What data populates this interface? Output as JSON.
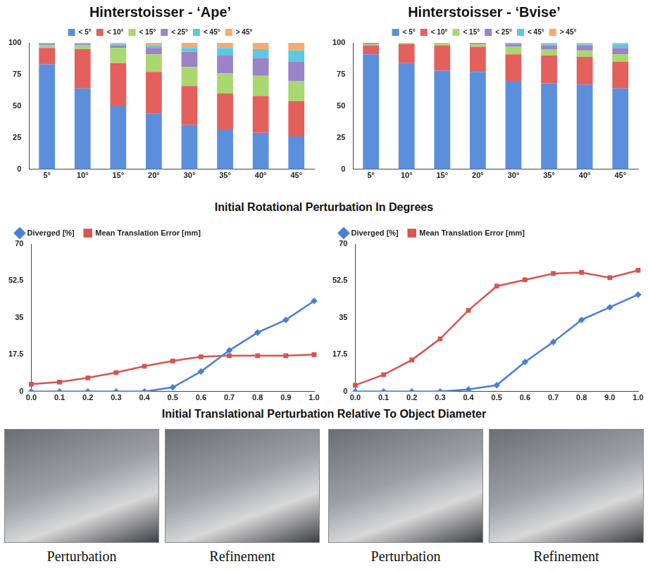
{
  "chart_data": [
    {
      "type": "bar",
      "title": "Hinterstoisser - ‘Ape’",
      "stacked": true,
      "grid": false,
      "legend": "top",
      "categories": [
        "5°",
        "10°",
        "15°",
        "20°",
        "30°",
        "35°",
        "40°",
        "45°"
      ],
      "ylim": [
        0,
        100
      ],
      "yticks": [
        0,
        25,
        50,
        75,
        100
      ],
      "series": [
        {
          "name": "< 5°",
          "color": "#5b8fdc",
          "values": [
            83,
            64,
            50,
            44,
            35,
            31,
            29,
            26
          ]
        },
        {
          "name": "< 10°",
          "color": "#e3605c",
          "values": [
            13,
            31,
            34,
            33,
            31,
            29,
            29,
            28
          ]
        },
        {
          "name": "< 15°",
          "color": "#a9d770",
          "values": [
            2,
            3,
            12,
            14,
            15,
            16,
            16,
            16
          ]
        },
        {
          "name": "< 25°",
          "color": "#9c82c9",
          "values": [
            1,
            1,
            2,
            5,
            12,
            14,
            14,
            15
          ]
        },
        {
          "name": "< 45°",
          "color": "#5cc9e2",
          "values": [
            1,
            1,
            1,
            2,
            3,
            6,
            7,
            9
          ]
        },
        {
          "name": "> 45°",
          "color": "#f6ab6e",
          "values": [
            0,
            0,
            1,
            2,
            4,
            4,
            5,
            6
          ]
        }
      ]
    },
    {
      "type": "bar",
      "title": "Hinterstoisser - ‘Bvise’",
      "stacked": true,
      "grid": false,
      "legend": "top",
      "categories": [
        "5°",
        "10°",
        "15°",
        "20°",
        "30°",
        "35°",
        "40°",
        "45°"
      ],
      "ylim": [
        0,
        100
      ],
      "yticks": [
        0,
        25,
        50,
        75,
        100
      ],
      "series": [
        {
          "name": "< 5°",
          "color": "#5b8fdc",
          "values": [
            91,
            84,
            78,
            77,
            70,
            68,
            67,
            64
          ]
        },
        {
          "name": "< 10°",
          "color": "#e3605c",
          "values": [
            7,
            15,
            20,
            20,
            21,
            22,
            22,
            21
          ]
        },
        {
          "name": "< 15°",
          "color": "#a9d770",
          "values": [
            1,
            1,
            2,
            2,
            6,
            5,
            5,
            6
          ]
        },
        {
          "name": "< 25°",
          "color": "#9c82c9",
          "values": [
            1,
            0,
            0,
            1,
            2,
            3,
            4,
            5
          ]
        },
        {
          "name": "< 45°",
          "color": "#5cc9e2",
          "values": [
            0,
            0,
            0,
            0,
            1,
            1,
            1,
            3
          ]
        },
        {
          "name": "> 45°",
          "color": "#f6ab6e",
          "values": [
            0,
            0,
            0,
            0,
            0,
            1,
            1,
            1
          ]
        }
      ]
    },
    {
      "type": "line",
      "grid": false,
      "legend": "top",
      "categories": [
        "0.0",
        "0.1",
        "0.2",
        "0.3",
        "0.4",
        "0.5",
        "0.6",
        "0.7",
        "0.8",
        "0.9",
        "1.0"
      ],
      "ylim": [
        0,
        70
      ],
      "yticks": [
        0,
        17.5,
        35,
        52.5,
        70
      ],
      "series": [
        {
          "name": "Diverged [%]",
          "color": "#4a7fd6",
          "marker": "diamond",
          "values": [
            0,
            0,
            0,
            0,
            0,
            2,
            9.5,
            19.5,
            28,
            34,
            43
          ]
        },
        {
          "name": "Mean Translation Error [mm]",
          "color": "#d9534f",
          "marker": "square",
          "values": [
            3.5,
            4.5,
            6.5,
            9,
            12,
            14.5,
            16.5,
            17,
            17,
            17,
            17.5
          ]
        }
      ]
    },
    {
      "type": "line",
      "grid": false,
      "legend": "top",
      "categories": [
        "0.0",
        "0.1",
        "0.2",
        "0.3",
        "0.4",
        "0.5",
        "0.6",
        "0.7",
        "0.8",
        "9.0",
        "1.0"
      ],
      "ylim": [
        0,
        70
      ],
      "yticks": [
        0,
        17.5,
        35,
        52.5,
        70
      ],
      "series": [
        {
          "name": "Diverged [%]",
          "color": "#4a7fd6",
          "marker": "diamond",
          "values": [
            0,
            0,
            0,
            0,
            1,
            3,
            14,
            23.5,
            34,
            40,
            46
          ]
        },
        {
          "name": "Mean Translation Error [mm]",
          "color": "#d9534f",
          "marker": "square",
          "values": [
            3,
            8,
            15,
            25,
            38.5,
            50,
            53,
            56,
            56.5,
            54,
            57.5
          ]
        }
      ]
    }
  ],
  "figure": {
    "row_labels": [
      "Initial Rotational Perturbation In Degrees",
      "Initial Translational Perturbation Relative To Object Diameter"
    ],
    "images": [
      {
        "caption": "Perturbation"
      },
      {
        "caption": "Refinement"
      },
      {
        "caption": "Perturbation"
      },
      {
        "caption": "Refinement"
      }
    ]
  }
}
